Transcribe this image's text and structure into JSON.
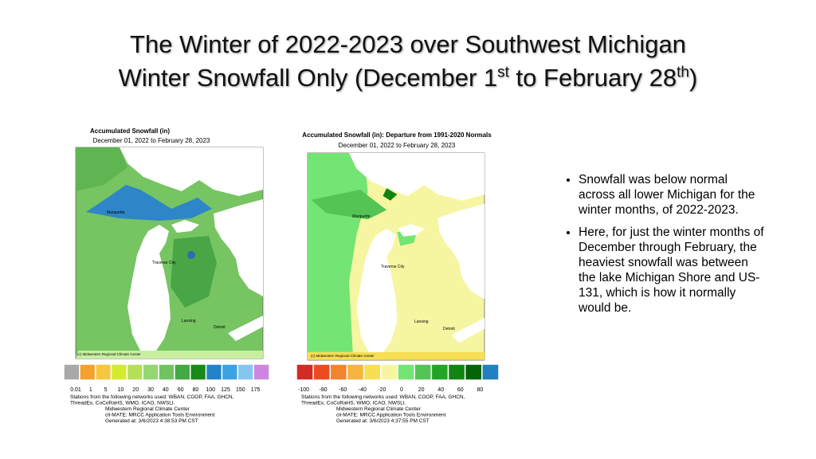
{
  "slide": {
    "title_line1": "The Winter of 2022-2023 over Southwest Michigan",
    "title_line2": [
      "Winter Snowfall Only (December 1",
      "st",
      " to February 28",
      "th",
      ")"
    ],
    "left_map": {
      "title": "Accumulated Snowfall (in)",
      "subtitle": "December 01, 2022 to February 28, 2023",
      "places": [
        "Marquette",
        "Traverse City",
        "Lansing",
        "Detroit"
      ],
      "credit": "(c) Midwestern Regional Climate Center",
      "legend_colors": [
        "#a8a8a8",
        "#f2a22c",
        "#f6c63c",
        "#d6ea2c",
        "#b4e05a",
        "#94d672",
        "#70c460",
        "#44a844",
        "#178a17",
        "#2283c6",
        "#3ea2e2",
        "#84c6f0",
        "#cc86e2"
      ],
      "legend_labels": [
        "0.01",
        "1",
        "5",
        "10",
        "20",
        "30",
        "40",
        "60",
        "80",
        "100",
        "125",
        "150",
        "175"
      ],
      "footer": [
        "Stations from the following networks used: WBAN, COOP, FAA, GHCN,",
        "ThreadEx, CoCoRaHS, WMO, ICAO, NWSLI.",
        "Midwestern Regional Climate Center",
        "cli-MATE: MRCC Application Tools Environment",
        "Generated at: 3/6/2023 4:38:53 PM CST"
      ]
    },
    "right_map": {
      "title": "Accumulated Snowfall (in): Departure from 1991-2020 Normals",
      "subtitle": "December 01, 2022 to February 28, 2023",
      "places": [
        "Marquette",
        "Traverse City",
        "Lansing",
        "Detroit"
      ],
      "credit": "(c) Midwestern Regional Climate Center",
      "legend_colors": [
        "#d42a24",
        "#ee4a22",
        "#f2842e",
        "#f7b43e",
        "#f7de52",
        "#f6f6a2",
        "#74e474",
        "#54c454",
        "#24a424",
        "#128412",
        "#066406",
        "#2280c2"
      ],
      "legend_labels": [
        "-100",
        "-80",
        "-60",
        "-40",
        "-20",
        "0",
        "20",
        "40",
        "60",
        "80"
      ],
      "footer": [
        "Stations from the following networks used: WBAN, COOP, FAA, GHCN,",
        "ThreadEx, CoCoRaHS, WMO, ICAO, NWSLI.",
        "Midwestern Regional Climate Center",
        "cli-MATE: MRCC Application Tools Environment",
        "Generated at: 3/6/2023 4:37:55 PM CST"
      ]
    },
    "bullets": [
      "Snowfall was below normal across all lower Michigan for the winter months,  of 2022-2023.",
      "Here, for just the winter months of December through February,  the heaviest snowfall was between the lake Michigan Shore and US-131,  which is how it normally would be."
    ]
  }
}
